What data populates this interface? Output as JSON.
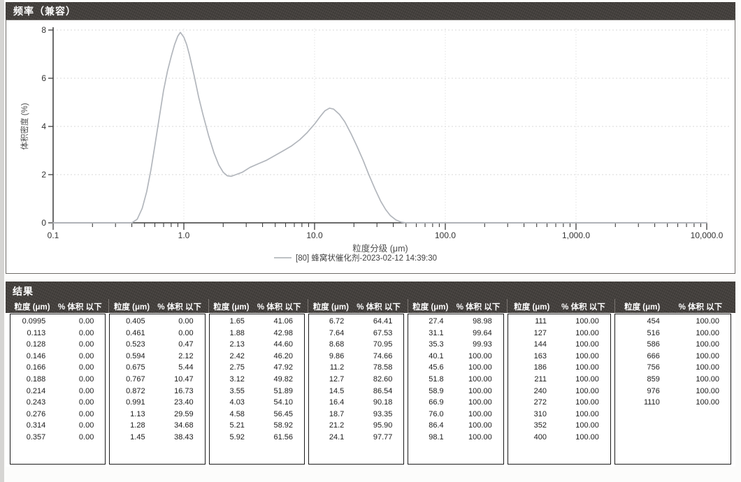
{
  "chart_panel": {
    "title": "频率（兼容）"
  },
  "chart_data": {
    "type": "line",
    "title": "频率（兼容）",
    "xlabel": "粒度分级 (μm)",
    "ylabel": "体积密度 (%)",
    "x_scale": "log",
    "xlim": [
      0.1,
      10000
    ],
    "ylim": [
      0,
      8
    ],
    "x_tick_values": [
      0.1,
      1,
      10,
      100,
      1000,
      10000
    ],
    "x_tick_labels": [
      "0.1",
      "1.0",
      "10.0",
      "100.0",
      "1,000.0",
      "10,000.0"
    ],
    "y_ticks": [
      0,
      2,
      4,
      6,
      8
    ],
    "grid": true,
    "legend_position": "bottom",
    "series": [
      {
        "name": "[80] 蜂窝状催化剂-2023-02-12 14:39:30",
        "color": "#b2b6bc",
        "points": [
          [
            0.1,
            0
          ],
          [
            0.4,
            0
          ],
          [
            0.44,
            0.15
          ],
          [
            0.48,
            0.6
          ],
          [
            0.52,
            1.3
          ],
          [
            0.56,
            2.2
          ],
          [
            0.6,
            3.2
          ],
          [
            0.65,
            4.4
          ],
          [
            0.7,
            5.5
          ],
          [
            0.75,
            6.3
          ],
          [
            0.8,
            6.9
          ],
          [
            0.85,
            7.4
          ],
          [
            0.9,
            7.75
          ],
          [
            0.94,
            7.9
          ],
          [
            1.0,
            7.7
          ],
          [
            1.05,
            7.4
          ],
          [
            1.1,
            7.0
          ],
          [
            1.2,
            6.1
          ],
          [
            1.3,
            5.2
          ],
          [
            1.4,
            4.5
          ],
          [
            1.55,
            3.6
          ],
          [
            1.7,
            2.9
          ],
          [
            1.85,
            2.4
          ],
          [
            2.0,
            2.1
          ],
          [
            2.15,
            1.95
          ],
          [
            2.3,
            1.93
          ],
          [
            2.5,
            2.0
          ],
          [
            2.8,
            2.1
          ],
          [
            3.2,
            2.3
          ],
          [
            3.7,
            2.45
          ],
          [
            4.3,
            2.6
          ],
          [
            5.0,
            2.8
          ],
          [
            5.8,
            3.0
          ],
          [
            6.7,
            3.2
          ],
          [
            7.7,
            3.45
          ],
          [
            8.8,
            3.75
          ],
          [
            10.0,
            4.1
          ],
          [
            11.0,
            4.4
          ],
          [
            12.0,
            4.65
          ],
          [
            13.0,
            4.76
          ],
          [
            14.0,
            4.72
          ],
          [
            15.5,
            4.5
          ],
          [
            17.0,
            4.2
          ],
          [
            19.0,
            3.7
          ],
          [
            21.0,
            3.2
          ],
          [
            23.5,
            2.6
          ],
          [
            26.0,
            2.0
          ],
          [
            29.0,
            1.4
          ],
          [
            32.0,
            0.9
          ],
          [
            35.0,
            0.55
          ],
          [
            38.0,
            0.3
          ],
          [
            42.0,
            0.12
          ],
          [
            46.0,
            0.03
          ],
          [
            50.0,
            0
          ],
          [
            10000,
            0
          ]
        ]
      }
    ]
  },
  "results": {
    "title": "结果",
    "col_headers": {
      "size": "粒度 (μm)",
      "pct": "% 体积 以下"
    },
    "groups": [
      [
        [
          "0.0995",
          "0.00"
        ],
        [
          "0.113",
          "0.00"
        ],
        [
          "0.128",
          "0.00"
        ],
        [
          "0.146",
          "0.00"
        ],
        [
          "0.166",
          "0.00"
        ],
        [
          "0.188",
          "0.00"
        ],
        [
          "0.214",
          "0.00"
        ],
        [
          "0.243",
          "0.00"
        ],
        [
          "0.276",
          "0.00"
        ],
        [
          "0.314",
          "0.00"
        ],
        [
          "0.357",
          "0.00"
        ]
      ],
      [
        [
          "0.405",
          "0.00"
        ],
        [
          "0.461",
          "0.00"
        ],
        [
          "0.523",
          "0.47"
        ],
        [
          "0.594",
          "2.12"
        ],
        [
          "0.675",
          "5.44"
        ],
        [
          "0.767",
          "10.47"
        ],
        [
          "0.872",
          "16.73"
        ],
        [
          "0.991",
          "23.40"
        ],
        [
          "1.13",
          "29.59"
        ],
        [
          "1.28",
          "34.68"
        ],
        [
          "1.45",
          "38.43"
        ]
      ],
      [
        [
          "1.65",
          "41.06"
        ],
        [
          "1.88",
          "42.98"
        ],
        [
          "2.13",
          "44.60"
        ],
        [
          "2.42",
          "46.20"
        ],
        [
          "2.75",
          "47.92"
        ],
        [
          "3.12",
          "49.82"
        ],
        [
          "3.55",
          "51.89"
        ],
        [
          "4.03",
          "54.10"
        ],
        [
          "4.58",
          "56.45"
        ],
        [
          "5.21",
          "58.92"
        ],
        [
          "5.92",
          "61.56"
        ]
      ],
      [
        [
          "6.72",
          "64.41"
        ],
        [
          "7.64",
          "67.53"
        ],
        [
          "8.68",
          "70.95"
        ],
        [
          "9.86",
          "74.66"
        ],
        [
          "11.2",
          "78.58"
        ],
        [
          "12.7",
          "82.60"
        ],
        [
          "14.5",
          "86.54"
        ],
        [
          "16.4",
          "90.18"
        ],
        [
          "18.7",
          "93.35"
        ],
        [
          "21.2",
          "95.90"
        ],
        [
          "24.1",
          "97.77"
        ]
      ],
      [
        [
          "27.4",
          "98.98"
        ],
        [
          "31.1",
          "99.64"
        ],
        [
          "35.3",
          "99.93"
        ],
        [
          "40.1",
          "100.00"
        ],
        [
          "45.6",
          "100.00"
        ],
        [
          "51.8",
          "100.00"
        ],
        [
          "58.9",
          "100.00"
        ],
        [
          "66.9",
          "100.00"
        ],
        [
          "76.0",
          "100.00"
        ],
        [
          "86.4",
          "100.00"
        ],
        [
          "98.1",
          "100.00"
        ]
      ],
      [
        [
          "111",
          "100.00"
        ],
        [
          "127",
          "100.00"
        ],
        [
          "144",
          "100.00"
        ],
        [
          "163",
          "100.00"
        ],
        [
          "186",
          "100.00"
        ],
        [
          "211",
          "100.00"
        ],
        [
          "240",
          "100.00"
        ],
        [
          "272",
          "100.00"
        ],
        [
          "310",
          "100.00"
        ],
        [
          "352",
          "100.00"
        ],
        [
          "400",
          "100.00"
        ]
      ],
      [
        [
          "454",
          "100.00"
        ],
        [
          "516",
          "100.00"
        ],
        [
          "586",
          "100.00"
        ],
        [
          "666",
          "100.00"
        ],
        [
          "756",
          "100.00"
        ],
        [
          "859",
          "100.00"
        ],
        [
          "976",
          "100.00"
        ],
        [
          "1110",
          "100.00"
        ]
      ]
    ]
  },
  "colors": {
    "bar_bg": "#44403d",
    "curve": "#b2b6bc",
    "grid": "#d9d9d9",
    "axis": "#3c3c3c",
    "label_text": "#4c4c4c"
  }
}
